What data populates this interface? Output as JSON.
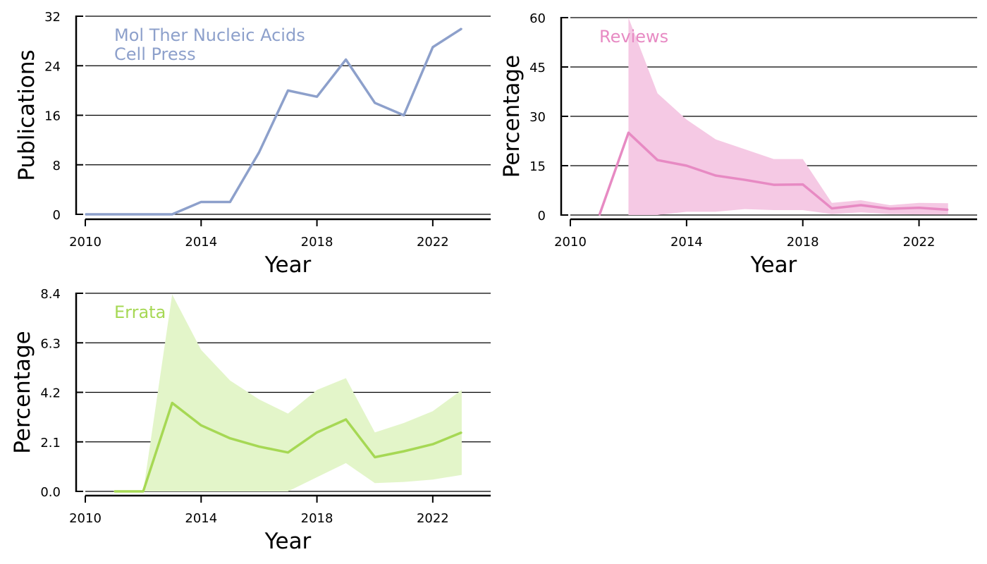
{
  "chart_data": [
    {
      "type": "line",
      "xlabel": "Year",
      "ylabel": "Publications",
      "xlim": [
        2010,
        2024
      ],
      "ylim": [
        0,
        32
      ],
      "xticks": [
        2010,
        2014,
        2018,
        2022
      ],
      "yticks": [
        0,
        8,
        16,
        24,
        32
      ],
      "grid": "horizontal",
      "legend_lines": [
        "Mol Ther Nucleic Acids",
        "Cell Press"
      ],
      "legend_position": "top-left",
      "color": "#8da0cb",
      "series": [
        {
          "x": [
            2010,
            2011,
            2012,
            2013,
            2014,
            2015,
            2016,
            2017,
            2018,
            2019,
            2020,
            2021,
            2022,
            2023
          ],
          "values": [
            0,
            0,
            0,
            0,
            2,
            2,
            10,
            20,
            19,
            25,
            18,
            16,
            27,
            30
          ]
        }
      ]
    },
    {
      "type": "area",
      "xlabel": "Year",
      "ylabel": "Percentage",
      "xlim": [
        2010,
        2024
      ],
      "ylim": [
        0,
        60
      ],
      "xticks": [
        2010,
        2014,
        2018,
        2022
      ],
      "yticks": [
        0,
        15,
        30,
        45,
        60
      ],
      "grid": "horizontal",
      "legend_lines": [
        "Reviews"
      ],
      "legend_position": "top-left",
      "color": "#e78ac3",
      "band_color": "#f5c9e4",
      "series": [
        {
          "x": [
            2011,
            2012,
            2013,
            2014,
            2015,
            2016,
            2017,
            2018,
            2019,
            2020,
            2021,
            2022,
            2023
          ],
          "values": [
            0,
            25,
            16.7,
            15,
            12,
            10.7,
            9.2,
            9.3,
            2,
            3,
            1.9,
            2.2,
            1.6
          ],
          "lower": [
            null,
            0,
            0,
            1,
            1,
            1.8,
            1.5,
            1.5,
            0.3,
            0.8,
            0.3,
            0.2,
            0.1
          ],
          "upper": [
            null,
            60,
            37,
            29,
            23,
            20,
            17,
            17,
            3.7,
            4.5,
            3,
            3.7,
            3.6
          ]
        }
      ]
    },
    {
      "type": "area",
      "xlabel": "Year",
      "ylabel": "Percentage",
      "xlim": [
        2010,
        2024
      ],
      "ylim": [
        0,
        8.4
      ],
      "xticks": [
        2010,
        2014,
        2018,
        2022
      ],
      "yticks": [
        "0.0",
        "2.1",
        "4.2",
        "6.3",
        "8.4"
      ],
      "grid": "horizontal",
      "legend_lines": [
        "Errata"
      ],
      "legend_position": "top-left",
      "color": "#a6d854",
      "band_color": "#e3f5c9",
      "series": [
        {
          "x": [
            2011,
            2012,
            2013,
            2014,
            2015,
            2016,
            2017,
            2018,
            2019,
            2020,
            2021,
            2022,
            2023
          ],
          "values": [
            0,
            0,
            3.75,
            2.8,
            2.25,
            1.9,
            1.65,
            2.5,
            3.05,
            1.45,
            1.7,
            2.0,
            2.5
          ],
          "lower": [
            0,
            0,
            0,
            0,
            0,
            0,
            0,
            0.6,
            1.2,
            0.35,
            0.4,
            0.5,
            0.7
          ],
          "upper": [
            0,
            0,
            8.35,
            6.0,
            4.7,
            3.9,
            3.3,
            4.3,
            4.8,
            2.5,
            2.9,
            3.4,
            4.3
          ]
        }
      ]
    }
  ]
}
